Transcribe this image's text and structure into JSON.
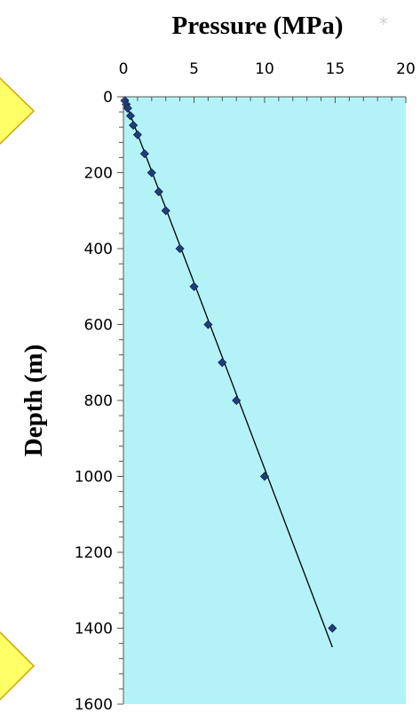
{
  "chart_data": {
    "type": "scatter",
    "title": "Pressure (MPa)",
    "title_mark": "*",
    "xlabel": "Pressure (MPa)",
    "ylabel": "Depth (m)",
    "x_axis_position": "top",
    "y_axis_inverted": true,
    "xlim": [
      0,
      20
    ],
    "ylim": [
      0,
      1600
    ],
    "x_ticks": [
      0,
      5,
      10,
      15,
      20
    ],
    "y_ticks": [
      0,
      200,
      400,
      600,
      800,
      1000,
      1200,
      1400,
      1600
    ],
    "plot_background": "#b3f3f8",
    "marker_color": "#1f3f7a",
    "trendline_color": "#000000",
    "marker_shape": "diamond",
    "series": [
      {
        "x": [
          0.1,
          0.2,
          0.3,
          0.5,
          0.7,
          1.0,
          1.5,
          2.0,
          2.5,
          3.0,
          4.0,
          5.0,
          6.0,
          7.0,
          8.0,
          10.0,
          14.8
        ],
        "y": [
          10,
          20,
          30,
          50,
          75,
          100,
          150,
          200,
          250,
          300,
          400,
          500,
          600,
          700,
          800,
          1000,
          1400
        ]
      }
    ],
    "trendline": {
      "x": [
        0,
        14.8
      ],
      "y": [
        0,
        1450
      ]
    },
    "decorations": [
      {
        "shape": "diamond",
        "fill": "#ffff66",
        "stroke": "#d4a300"
      },
      {
        "shape": "diamond",
        "fill": "#ffff66",
        "stroke": "#d4a300"
      }
    ]
  }
}
